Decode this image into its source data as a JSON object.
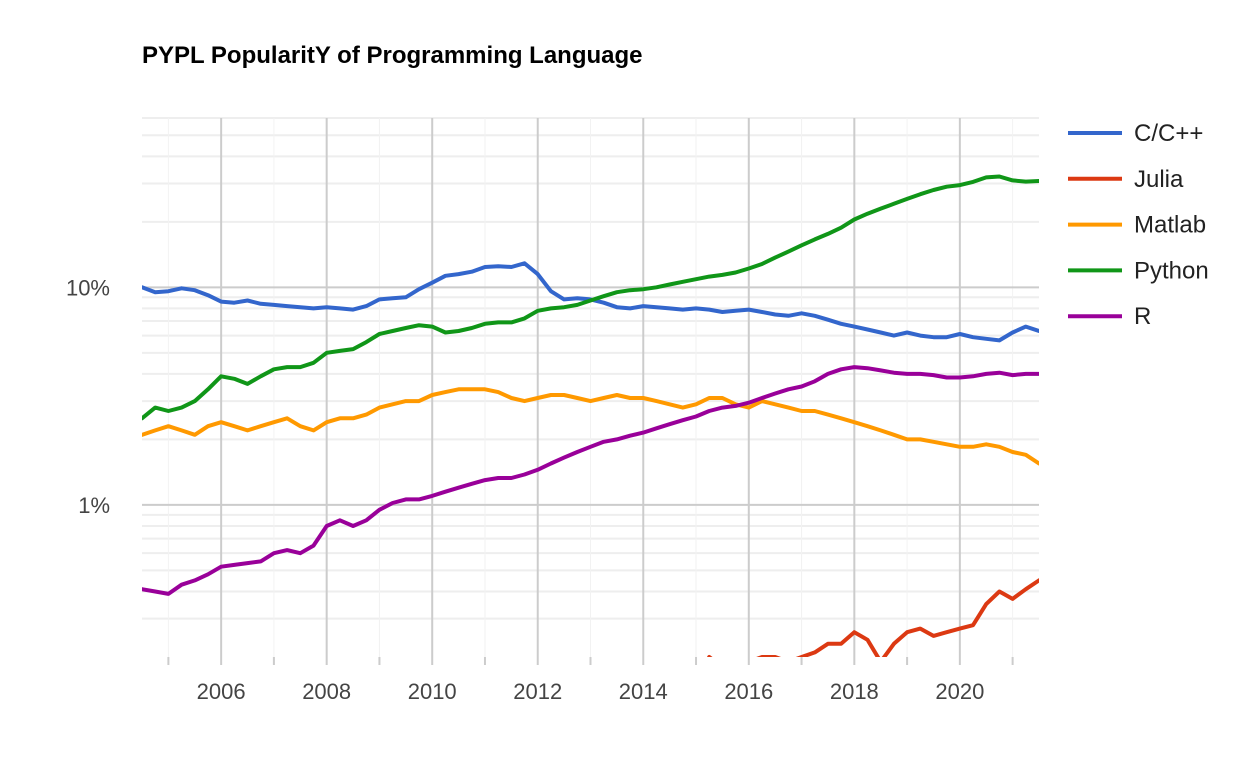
{
  "chart_data": {
    "type": "line",
    "title": "PYPL PopularitY of Programming Language",
    "xlabel": "",
    "ylabel": "",
    "y_scale": "log",
    "xlim": [
      2004.5,
      2021.5
    ],
    "ylim": [
      0.2,
      60
    ],
    "x_ticks": [
      2006,
      2008,
      2010,
      2012,
      2014,
      2016,
      2018,
      2020
    ],
    "x_tick_labels": [
      "2006",
      "2008",
      "2010",
      "2012",
      "2014",
      "2016",
      "2018",
      "2020"
    ],
    "y_ticks": [
      10,
      1
    ],
    "y_tick_labels": [
      "10%",
      "1%"
    ],
    "grid": true,
    "legend_position": "right",
    "series": [
      {
        "name": "C/C++",
        "color": "#3366cc",
        "x": [
          2004.5,
          2004.75,
          2005.0,
          2005.25,
          2005.5,
          2005.75,
          2006.0,
          2006.25,
          2006.5,
          2006.75,
          2007.0,
          2007.25,
          2007.5,
          2007.75,
          2008.0,
          2008.25,
          2008.5,
          2008.75,
          2009.0,
          2009.25,
          2009.5,
          2009.75,
          2010.0,
          2010.25,
          2010.5,
          2010.75,
          2011.0,
          2011.25,
          2011.5,
          2011.75,
          2012.0,
          2012.25,
          2012.5,
          2012.75,
          2013.0,
          2013.25,
          2013.5,
          2013.75,
          2014.0,
          2014.25,
          2014.5,
          2014.75,
          2015.0,
          2015.25,
          2015.5,
          2015.75,
          2016.0,
          2016.25,
          2016.5,
          2016.75,
          2017.0,
          2017.25,
          2017.5,
          2017.75,
          2018.0,
          2018.25,
          2018.5,
          2018.75,
          2019.0,
          2019.25,
          2019.5,
          2019.75,
          2020.0,
          2020.25,
          2020.5,
          2020.75,
          2021.0,
          2021.25,
          2021.5
        ],
        "y": [
          10.0,
          9.5,
          9.6,
          9.9,
          9.7,
          9.2,
          8.6,
          8.5,
          8.7,
          8.4,
          8.3,
          8.2,
          8.1,
          8.0,
          8.1,
          8.0,
          7.9,
          8.2,
          8.8,
          8.9,
          9.0,
          9.8,
          10.5,
          11.3,
          11.5,
          11.8,
          12.4,
          12.5,
          12.4,
          12.9,
          11.5,
          9.6,
          8.8,
          8.9,
          8.8,
          8.5,
          8.1,
          8.0,
          8.2,
          8.1,
          8.0,
          7.9,
          8.0,
          7.9,
          7.7,
          7.8,
          7.9,
          7.7,
          7.5,
          7.4,
          7.6,
          7.4,
          7.1,
          6.8,
          6.6,
          6.4,
          6.2,
          6.0,
          6.2,
          6.0,
          5.9,
          5.9,
          6.1,
          5.9,
          5.8,
          5.7,
          6.2,
          6.6,
          6.3
        ]
      },
      {
        "name": "Julia",
        "color": "#dc3912",
        "x": [
          2015.25,
          2015.5,
          2015.75,
          2016.0,
          2016.25,
          2016.5,
          2016.75,
          2017.0,
          2017.25,
          2017.5,
          2017.75,
          2018.0,
          2018.25,
          2018.5,
          2018.75,
          2019.0,
          2019.25,
          2019.5,
          2019.75,
          2020.0,
          2020.25,
          2020.5,
          2020.75,
          2021.0,
          2021.25,
          2021.5
        ],
        "y": [
          0.2,
          0.18,
          0.19,
          0.19,
          0.2,
          0.2,
          0.19,
          0.2,
          0.21,
          0.23,
          0.23,
          0.26,
          0.24,
          0.19,
          0.23,
          0.26,
          0.27,
          0.25,
          0.26,
          0.27,
          0.28,
          0.35,
          0.4,
          0.37,
          0.41,
          0.45
        ]
      },
      {
        "name": "Matlab",
        "color": "#ff9900",
        "x": [
          2004.5,
          2004.75,
          2005.0,
          2005.25,
          2005.5,
          2005.75,
          2006.0,
          2006.25,
          2006.5,
          2006.75,
          2007.0,
          2007.25,
          2007.5,
          2007.75,
          2008.0,
          2008.25,
          2008.5,
          2008.75,
          2009.0,
          2009.25,
          2009.5,
          2009.75,
          2010.0,
          2010.25,
          2010.5,
          2010.75,
          2011.0,
          2011.25,
          2011.5,
          2011.75,
          2012.0,
          2012.25,
          2012.5,
          2012.75,
          2013.0,
          2013.25,
          2013.5,
          2013.75,
          2014.0,
          2014.25,
          2014.5,
          2014.75,
          2015.0,
          2015.25,
          2015.5,
          2015.75,
          2016.0,
          2016.25,
          2016.5,
          2016.75,
          2017.0,
          2017.25,
          2017.5,
          2017.75,
          2018.0,
          2018.25,
          2018.5,
          2018.75,
          2019.0,
          2019.25,
          2019.5,
          2019.75,
          2020.0,
          2020.25,
          2020.5,
          2020.75,
          2021.0,
          2021.25,
          2021.5
        ],
        "y": [
          2.1,
          2.2,
          2.3,
          2.2,
          2.1,
          2.3,
          2.4,
          2.3,
          2.2,
          2.3,
          2.4,
          2.5,
          2.3,
          2.2,
          2.4,
          2.5,
          2.5,
          2.6,
          2.8,
          2.9,
          3.0,
          3.0,
          3.2,
          3.3,
          3.4,
          3.4,
          3.4,
          3.3,
          3.1,
          3.0,
          3.1,
          3.2,
          3.2,
          3.1,
          3.0,
          3.1,
          3.2,
          3.1,
          3.1,
          3.0,
          2.9,
          2.8,
          2.9,
          3.1,
          3.1,
          2.9,
          2.8,
          3.0,
          2.9,
          2.8,
          2.7,
          2.7,
          2.6,
          2.5,
          2.4,
          2.3,
          2.2,
          2.1,
          2.0,
          2.0,
          1.95,
          1.9,
          1.85,
          1.85,
          1.9,
          1.85,
          1.75,
          1.7,
          1.55
        ]
      },
      {
        "name": "Python",
        "color": "#109618",
        "x": [
          2004.5,
          2004.75,
          2005.0,
          2005.25,
          2005.5,
          2005.75,
          2006.0,
          2006.25,
          2006.5,
          2006.75,
          2007.0,
          2007.25,
          2007.5,
          2007.75,
          2008.0,
          2008.25,
          2008.5,
          2008.75,
          2009.0,
          2009.25,
          2009.5,
          2009.75,
          2010.0,
          2010.25,
          2010.5,
          2010.75,
          2011.0,
          2011.25,
          2011.5,
          2011.75,
          2012.0,
          2012.25,
          2012.5,
          2012.75,
          2013.0,
          2013.25,
          2013.5,
          2013.75,
          2014.0,
          2014.25,
          2014.5,
          2014.75,
          2015.0,
          2015.25,
          2015.5,
          2015.75,
          2016.0,
          2016.25,
          2016.5,
          2016.75,
          2017.0,
          2017.25,
          2017.5,
          2017.75,
          2018.0,
          2018.25,
          2018.5,
          2018.75,
          2019.0,
          2019.25,
          2019.5,
          2019.75,
          2020.0,
          2020.25,
          2020.5,
          2020.75,
          2021.0,
          2021.25,
          2021.5
        ],
        "y": [
          2.5,
          2.8,
          2.7,
          2.8,
          3.0,
          3.4,
          3.9,
          3.8,
          3.6,
          3.9,
          4.2,
          4.3,
          4.3,
          4.5,
          5.0,
          5.1,
          5.2,
          5.6,
          6.1,
          6.3,
          6.5,
          6.7,
          6.6,
          6.2,
          6.3,
          6.5,
          6.8,
          6.9,
          6.9,
          7.2,
          7.8,
          8.0,
          8.1,
          8.3,
          8.7,
          9.1,
          9.5,
          9.7,
          9.8,
          10.0,
          10.3,
          10.6,
          10.9,
          11.2,
          11.4,
          11.7,
          12.2,
          12.8,
          13.7,
          14.6,
          15.6,
          16.6,
          17.6,
          18.8,
          20.5,
          21.8,
          23.0,
          24.2,
          25.5,
          26.8,
          28.0,
          29.0,
          29.5,
          30.5,
          32.0,
          32.3,
          31.0,
          30.6,
          30.8
        ]
      },
      {
        "name": "R",
        "color": "#990099",
        "x": [
          2004.5,
          2004.75,
          2005.0,
          2005.25,
          2005.5,
          2005.75,
          2006.0,
          2006.25,
          2006.5,
          2006.75,
          2007.0,
          2007.25,
          2007.5,
          2007.75,
          2008.0,
          2008.25,
          2008.5,
          2008.75,
          2009.0,
          2009.25,
          2009.5,
          2009.75,
          2010.0,
          2010.25,
          2010.5,
          2010.75,
          2011.0,
          2011.25,
          2011.5,
          2011.75,
          2012.0,
          2012.25,
          2012.5,
          2012.75,
          2013.0,
          2013.25,
          2013.5,
          2013.75,
          2014.0,
          2014.25,
          2014.5,
          2014.75,
          2015.0,
          2015.25,
          2015.5,
          2015.75,
          2016.0,
          2016.25,
          2016.5,
          2016.75,
          2017.0,
          2017.25,
          2017.5,
          2017.75,
          2018.0,
          2018.25,
          2018.5,
          2018.75,
          2019.0,
          2019.25,
          2019.5,
          2019.75,
          2020.0,
          2020.25,
          2020.5,
          2020.75,
          2021.0,
          2021.25,
          2021.5
        ],
        "y": [
          0.41,
          0.4,
          0.39,
          0.43,
          0.45,
          0.48,
          0.52,
          0.53,
          0.54,
          0.55,
          0.6,
          0.62,
          0.6,
          0.65,
          0.8,
          0.85,
          0.8,
          0.85,
          0.95,
          1.02,
          1.06,
          1.06,
          1.1,
          1.15,
          1.2,
          1.25,
          1.3,
          1.33,
          1.33,
          1.38,
          1.45,
          1.55,
          1.65,
          1.75,
          1.85,
          1.95,
          2.0,
          2.08,
          2.15,
          2.25,
          2.35,
          2.45,
          2.55,
          2.7,
          2.8,
          2.85,
          2.95,
          3.1,
          3.25,
          3.4,
          3.5,
          3.7,
          4.0,
          4.2,
          4.3,
          4.25,
          4.15,
          4.05,
          4.0,
          4.0,
          3.95,
          3.85,
          3.85,
          3.9,
          4.0,
          4.05,
          3.95,
          4.0,
          4.0
        ]
      }
    ]
  }
}
